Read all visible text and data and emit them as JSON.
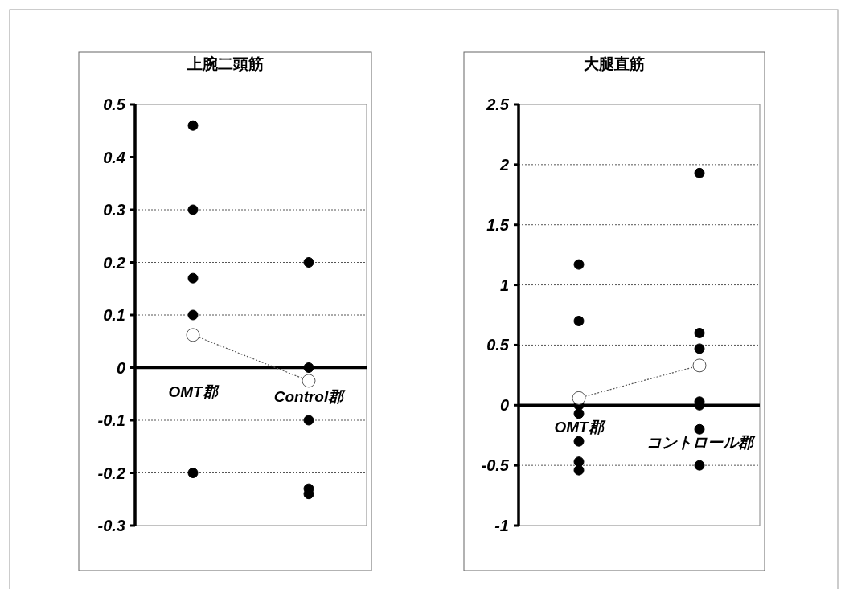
{
  "chart_data": [
    {
      "type": "scatter",
      "title": "上腕二頭筋",
      "categories": [
        "OMT郡",
        "Control郡"
      ],
      "ylim": [
        -0.3,
        0.5
      ],
      "yticks": [
        -0.3,
        -0.2,
        -0.1,
        0,
        0.1,
        0.2,
        0.3,
        0.4,
        0.5
      ],
      "grid": "y",
      "marker": "circle",
      "series": [
        {
          "type": "scatter",
          "color": "#000000",
          "x": [
            "OMT郡",
            "OMT郡",
            "OMT郡",
            "OMT郡",
            "OMT郡",
            "Control郡",
            "Control郡",
            "Control郡",
            "Control郡",
            "Control郡"
          ],
          "values": [
            0.46,
            0.3,
            0.17,
            0.1,
            -0.2,
            0.2,
            0.0,
            -0.1,
            -0.23,
            -0.24
          ]
        },
        {
          "type": "line",
          "color": "#ffffff",
          "line_style": "dotted",
          "values": [
            0.062,
            -0.025
          ]
        }
      ]
    },
    {
      "type": "scatter",
      "title": "大腿直筋",
      "categories": [
        "OMT郡",
        "コントロール郡"
      ],
      "ylim": [
        -1,
        2.5
      ],
      "yticks": [
        -1,
        -0.5,
        0,
        0.5,
        1,
        1.5,
        2,
        2.5
      ],
      "grid": "y",
      "marker": "circle",
      "series": [
        {
          "type": "scatter",
          "color": "#000000",
          "x": [
            "OMT郡",
            "OMT郡",
            "OMT郡",
            "OMT郡",
            "OMT郡",
            "OMT郡",
            "OMT郡",
            "コントロール郡",
            "コントロール郡",
            "コントロール郡",
            "コントロール郡",
            "コントロール郡",
            "コントロール郡",
            "コントロール郡"
          ],
          "values": [
            1.17,
            0.7,
            0.0,
            -0.07,
            -0.3,
            -0.47,
            -0.54,
            1.93,
            0.6,
            0.47,
            0.03,
            0.0,
            -0.2,
            -0.5
          ]
        },
        {
          "type": "line",
          "color": "#ffffff",
          "line_style": "dotted",
          "values": [
            0.06,
            0.33
          ]
        }
      ]
    }
  ]
}
